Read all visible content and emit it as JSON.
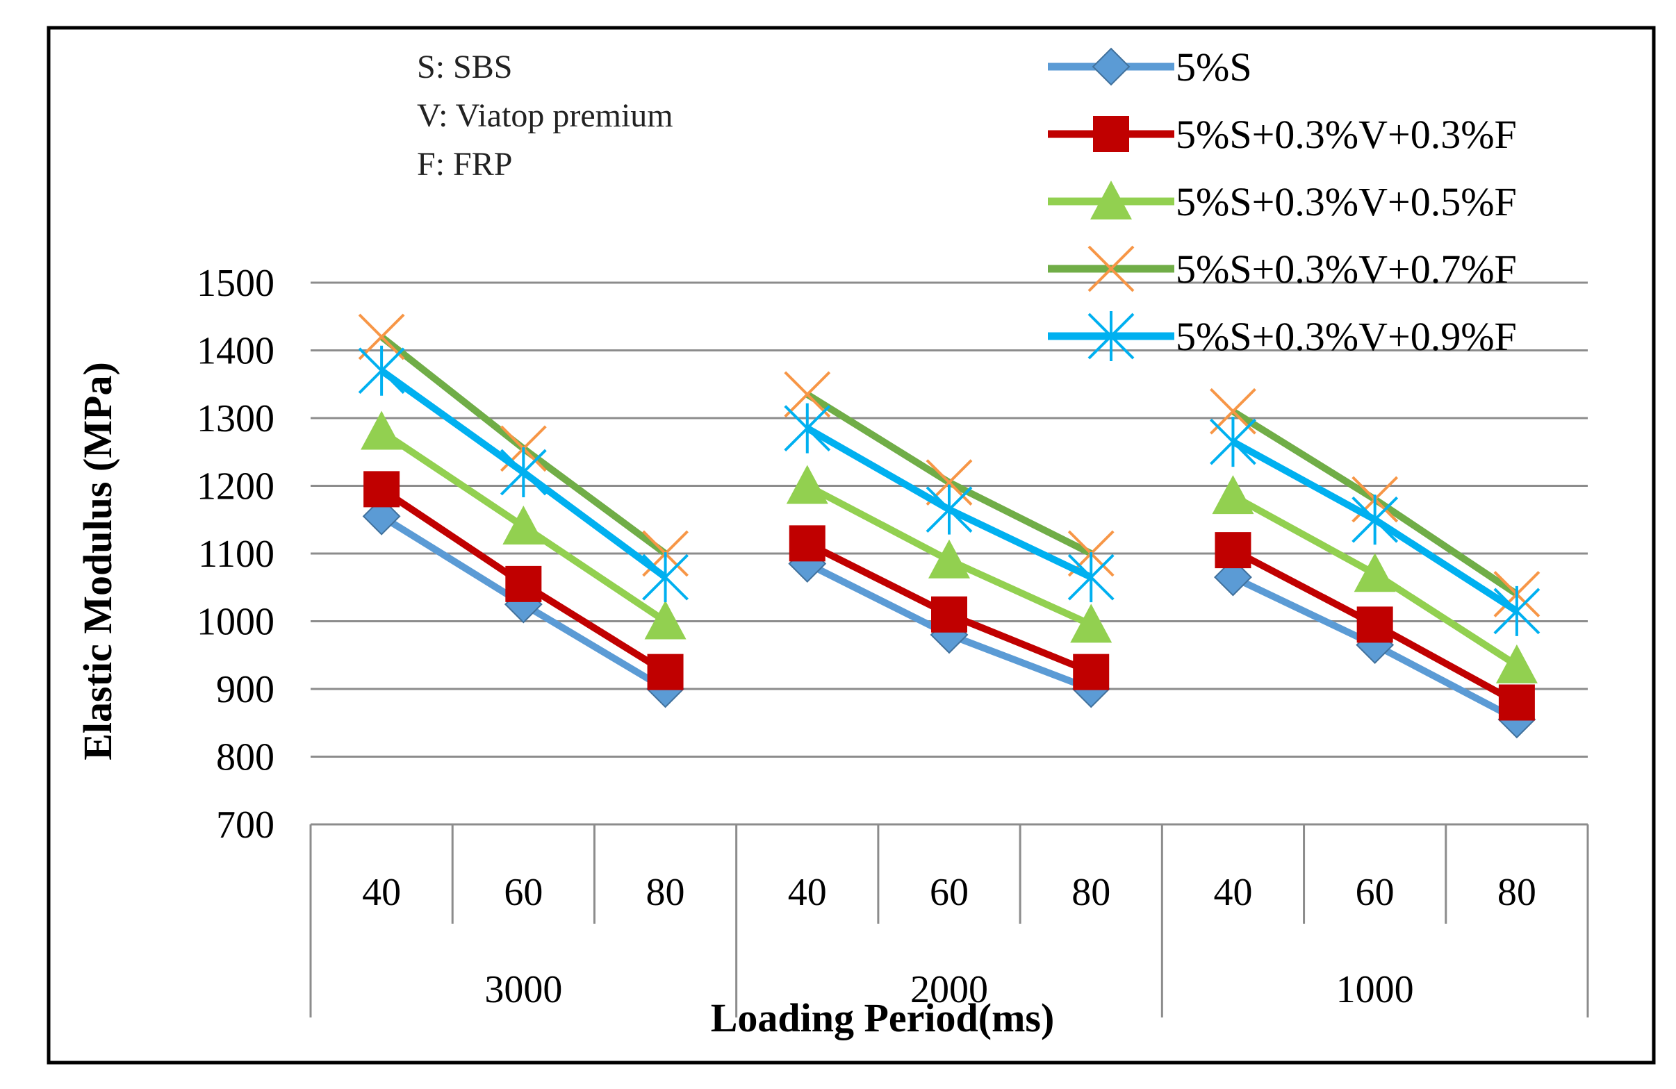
{
  "chart_data": {
    "type": "line",
    "title": "",
    "xlabel": "Loading Period(ms)",
    "ylabel": "Elastic Modulus (MPa)",
    "ylim": [
      700,
      1500
    ],
    "yticks": [
      700,
      800,
      900,
      1000,
      1100,
      1200,
      1300,
      1400,
      1500
    ],
    "grid": true,
    "legend_position": "top-right",
    "groups": [
      {
        "label": "3000",
        "categories": [
          "40",
          "60",
          "80"
        ]
      },
      {
        "label": "2000",
        "categories": [
          "40",
          "60",
          "80"
        ]
      },
      {
        "label": "1000",
        "categories": [
          "40",
          "60",
          "80"
        ]
      }
    ],
    "notes": [
      "S: SBS",
      "V: Viatop premium",
      "F: FRP"
    ],
    "series": [
      {
        "name": "5%S",
        "color": "#5B9BD5",
        "marker": "diamond",
        "values": [
          [
            1155,
            1025,
            900
          ],
          [
            1085,
            980,
            900
          ],
          [
            1065,
            965,
            855
          ]
        ]
      },
      {
        "name": "5%S+0.3%V+0.3%F",
        "color": "#C00000",
        "marker": "square",
        "values": [
          [
            1195,
            1055,
            925
          ],
          [
            1115,
            1010,
            925
          ],
          [
            1105,
            995,
            880
          ]
        ]
      },
      {
        "name": "5%S+0.3%V+0.5%F",
        "color": "#92D050",
        "marker": "triangle",
        "values": [
          [
            1280,
            1140,
            1000
          ],
          [
            1200,
            1090,
            995
          ],
          [
            1185,
            1070,
            935
          ]
        ]
      },
      {
        "name": "5%S+0.3%V+0.7%F",
        "color": "#70AD47",
        "marker_color": "#F79646",
        "marker": "x",
        "values": [
          [
            1420,
            1255,
            1100
          ],
          [
            1335,
            1205,
            1100
          ],
          [
            1310,
            1180,
            1040
          ]
        ]
      },
      {
        "name": "5%S+0.3%V+0.9%F",
        "color": "#00B0F0",
        "marker": "star",
        "values": [
          [
            1370,
            1220,
            1065
          ],
          [
            1285,
            1165,
            1065
          ],
          [
            1265,
            1150,
            1015
          ]
        ]
      }
    ]
  }
}
